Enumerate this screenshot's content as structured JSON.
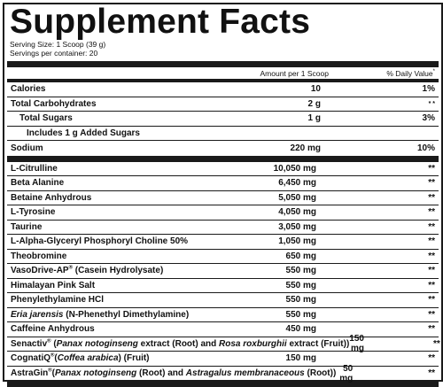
{
  "title": "Supplement Facts",
  "serving_size": "Serving Size: 1 Scoop (39 g)",
  "servings_per_container": "Servings per container: 20",
  "header": {
    "amount": "Amount per 1 Scoop",
    "dv": "% Daily Value",
    "dv_mark": "*"
  },
  "nutrients": [
    {
      "name": "Calories",
      "amount": "10",
      "dv": "1%"
    },
    {
      "name": "Total Carbohydrates",
      "amount": "2 g",
      "dv": "* *"
    },
    {
      "name": "Total Sugars",
      "amount": "1 g",
      "dv": "3%"
    },
    {
      "name": "Includes 1 g Added Sugars",
      "amount": "",
      "dv": ""
    },
    {
      "name": "Sodium",
      "amount": "220 mg",
      "dv": "10%"
    }
  ],
  "ingredients": [
    {
      "name": "L-Citrulline",
      "amount": "10,050 mg",
      "dv": "**"
    },
    {
      "name": "Beta Alanine",
      "amount": "6,450 mg",
      "dv": "**"
    },
    {
      "name": "Betaine Anhydrous",
      "amount": "5,050 mg",
      "dv": "**"
    },
    {
      "name": "L-Tyrosine",
      "amount": "4,050 mg",
      "dv": "**"
    },
    {
      "name": "Taurine",
      "amount": "3,050 mg",
      "dv": "**"
    },
    {
      "name": "L-Alpha-Glyceryl Phosphoryl Choline 50%",
      "amount": "1,050 mg",
      "dv": "**"
    },
    {
      "name": "Theobromine",
      "amount": "650 mg",
      "dv": "**"
    },
    {
      "name_a": "VasoDrive-AP",
      "mark": "®",
      "name_b": " (Casein Hydrolysate)",
      "amount": "550 mg",
      "dv": "**"
    },
    {
      "name": "Himalayan Pink Salt",
      "amount": "550 mg",
      "dv": "**"
    },
    {
      "name": "Phenylethylamine HCl",
      "amount": "550 mg",
      "dv": "**"
    },
    {
      "italic": "Eria jarensis",
      "rest": " (N-Phenethyl Dimethylamine)",
      "amount": "550 mg",
      "dv": "**"
    },
    {
      "name": "Caffeine Anhydrous",
      "amount": "450 mg",
      "dv": "**"
    },
    {
      "p1": "Senactiv",
      "mark": "®",
      "p2": " (",
      "i1": "Panax notoginseng",
      "p3": " extract (Root) and ",
      "i2": "Rosa roxburghii",
      "p4": " extract (Fruit))",
      "amount": "150 mg",
      "dv": "**"
    },
    {
      "p1": "CognatiQ",
      "mark": "®",
      "p2": "(",
      "i1": "Coffea arabica",
      "p3": ") (Fruit)",
      "amount": "150 mg",
      "dv": "**"
    },
    {
      "p1": "AstraGin",
      "mark": "®",
      "p2": "(",
      "i1": "Panax notoginseng",
      "p3": " (Root) and ",
      "i2": "Astragalus membranaceous",
      "p4": " (Root))",
      "amount": "50 mg",
      "dv": "**"
    }
  ]
}
